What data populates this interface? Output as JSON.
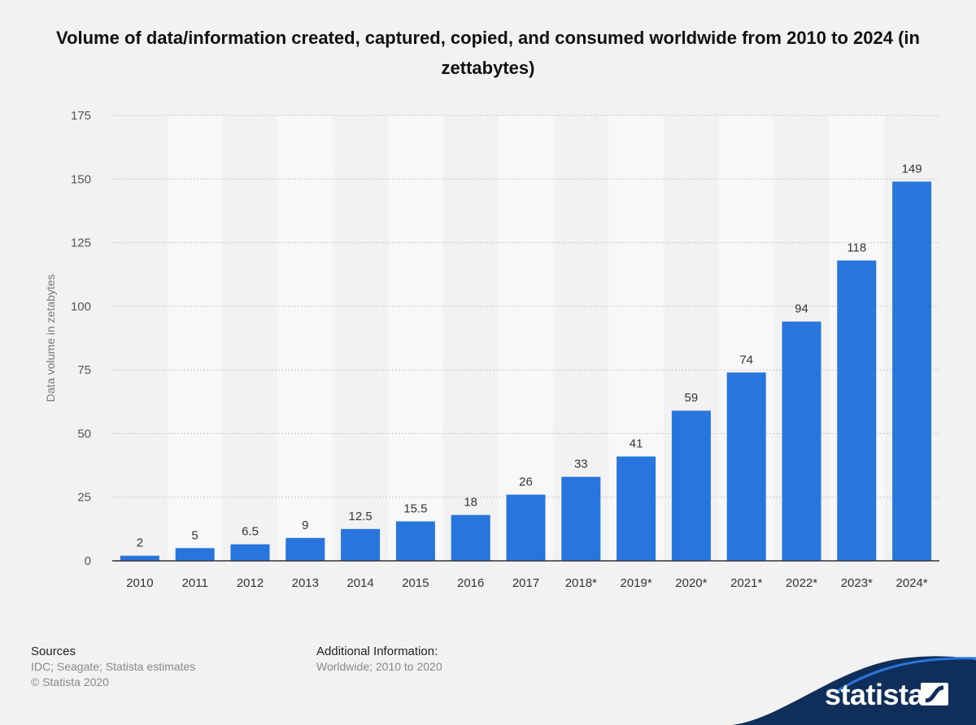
{
  "chart_data": {
    "type": "bar",
    "title": "Volume of data/information created, captured, copied, and consumed worldwide from 2010 to 2024 (in zettabytes)",
    "ylabel": "Data volume in zetabytes",
    "categories": [
      "2010",
      "2011",
      "2012",
      "2013",
      "2014",
      "2015",
      "2016",
      "2017",
      "2018*",
      "2019*",
      "2020*",
      "2021*",
      "2022*",
      "2023*",
      "2024*"
    ],
    "values": [
      2,
      5,
      6.5,
      9,
      12.5,
      15.5,
      18,
      26,
      33,
      41,
      59,
      74,
      94,
      118,
      149
    ],
    "data_labels": [
      "2",
      "5",
      "6.5",
      "9",
      "12.5",
      "15.5",
      "18",
      "26",
      "33",
      "41",
      "59",
      "74",
      "94",
      "118",
      "149"
    ],
    "ylim": [
      0,
      175
    ],
    "yticks": [
      0,
      25,
      50,
      75,
      100,
      125,
      150,
      175
    ],
    "grid": true,
    "bar_color": "#2876dd",
    "band_color": "#f8f8f8"
  },
  "footer": {
    "sources_label": "Sources",
    "sources_text": "IDC; Seagate; Statista estimates",
    "copyright": "© Statista 2020",
    "additional_label": "Additional Information:",
    "additional_text": "Worldwide; 2010 to 2020"
  },
  "brand": {
    "name": "statista",
    "color": "#0f2f5a",
    "accent": "#2876dd"
  }
}
